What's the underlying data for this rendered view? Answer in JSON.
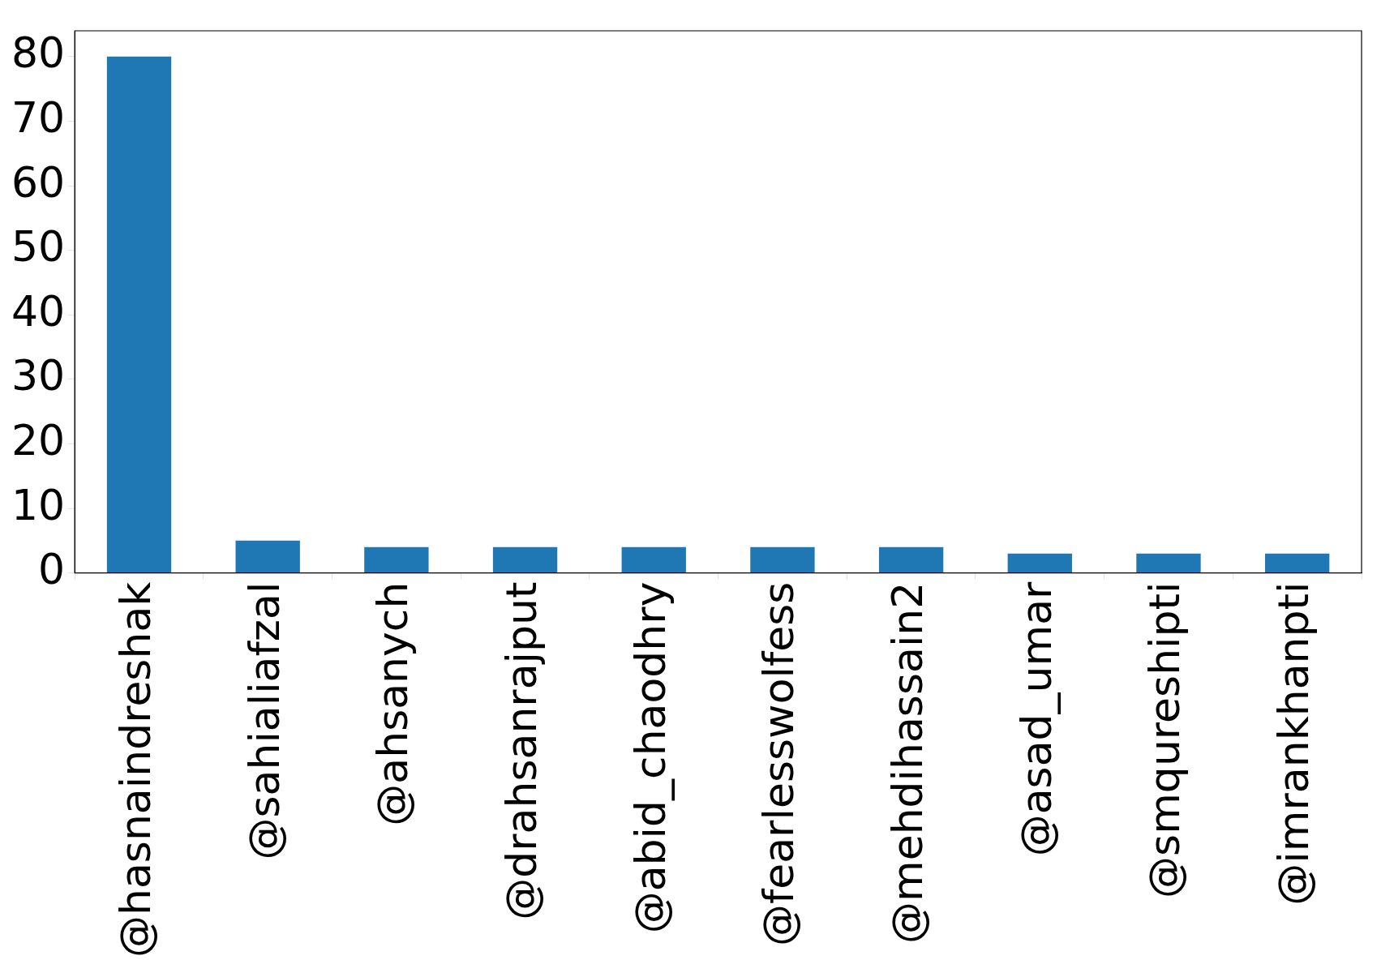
{
  "chart_data": {
    "type": "bar",
    "categories": [
      "@hasnaindreshak",
      "@sahialiafzal",
      "@ahsanych",
      "@drahsanrajput",
      "@abid_chaodhry",
      "@fearlesswolfess",
      "@mehdihassain2",
      "@asad_umar",
      "@smqureshipti",
      "@imrankhanpti"
    ],
    "values": [
      80,
      5,
      4,
      4,
      4,
      4,
      4,
      3,
      3,
      3
    ],
    "color": "#1f77b4",
    "ylim": [
      0,
      84
    ],
    "yticks": [
      0,
      10,
      20,
      30,
      40,
      50,
      60,
      70,
      80
    ],
    "grid": false,
    "legend": false
  }
}
